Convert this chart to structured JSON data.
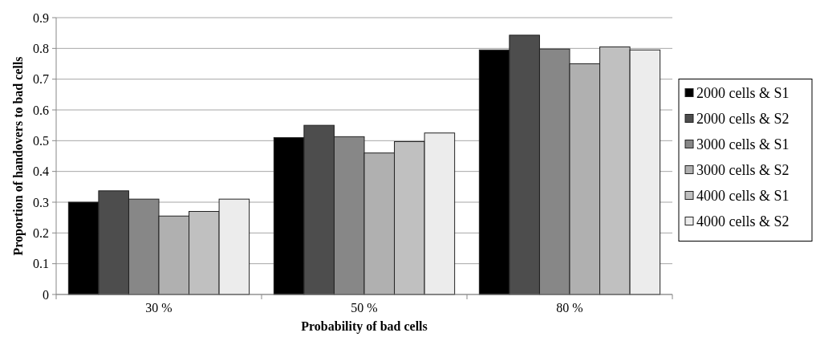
{
  "chart_data": {
    "type": "bar",
    "xlabel": "Probability of bad cells",
    "ylabel": "Proportion of handovers to bad cells",
    "categories": [
      "30 %",
      "50 %",
      "80 %"
    ],
    "series": [
      {
        "name": "2000 cells & S1",
        "color": "#000000",
        "values": [
          0.3,
          0.51,
          0.795
        ]
      },
      {
        "name": "2000 cells & S2",
        "color": "#4d4d4d",
        "values": [
          0.337,
          0.55,
          0.843
        ]
      },
      {
        "name": "3000 cells & S1",
        "color": "#878787",
        "values": [
          0.31,
          0.513,
          0.798
        ]
      },
      {
        "name": "3000 cells & S2",
        "color": "#b0b0b0",
        "values": [
          0.255,
          0.46,
          0.75
        ]
      },
      {
        "name": "4000 cells & S1",
        "color": "#c0c0c0",
        "values": [
          0.27,
          0.497,
          0.805
        ]
      },
      {
        "name": "4000 cells & S2",
        "color": "#ececec",
        "values": [
          0.31,
          0.525,
          0.795
        ]
      }
    ],
    "ylim": [
      0,
      0.9
    ],
    "yticks": [
      0,
      0.1,
      0.2,
      0.3,
      0.4,
      0.5,
      0.6,
      0.7,
      0.8,
      0.9
    ],
    "grid": "y",
    "legend": "right"
  }
}
